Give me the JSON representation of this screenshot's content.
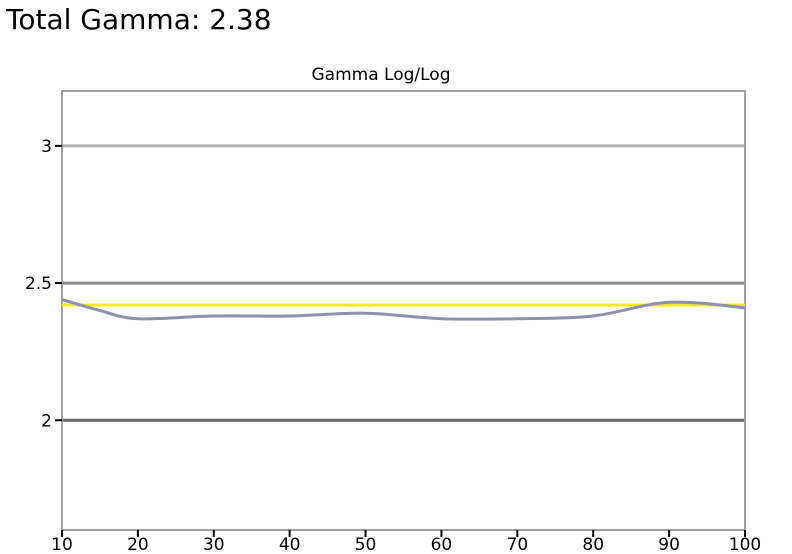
{
  "header": {
    "title": "Total Gamma: 2.38"
  },
  "chart_data": {
    "type": "line",
    "title": "Gamma Log/Log",
    "xlabel": "",
    "ylabel": "",
    "xlim": [
      10,
      100
    ],
    "ylim": [
      1.6,
      3.2
    ],
    "x_ticks": [
      10,
      20,
      30,
      40,
      50,
      60,
      70,
      80,
      90,
      100
    ],
    "y_ticks": [
      2,
      2.5,
      3
    ],
    "y_tick_labels": [
      "2",
      "2.5",
      "3"
    ],
    "grid": "horizontal at y ticks",
    "legend": "none",
    "series": [
      {
        "x": [
          10,
          100
        ],
        "values": [
          2.42,
          2.42
        ],
        "color": "#f2ec1c"
      },
      {
        "x": [
          10,
          15,
          20,
          30,
          40,
          50,
          60,
          70,
          80,
          90,
          100
        ],
        "values": [
          2.44,
          2.4,
          2.37,
          2.38,
          2.38,
          2.39,
          2.37,
          2.37,
          2.38,
          2.43,
          2.41
        ],
        "color": "#8e92a8"
      }
    ],
    "colors": {
      "frame": "#a0a0a0",
      "grid_upper": "#b0b0b0",
      "grid_mid": "#8a8a8a",
      "grid_lower": "#6a6a6a"
    }
  }
}
